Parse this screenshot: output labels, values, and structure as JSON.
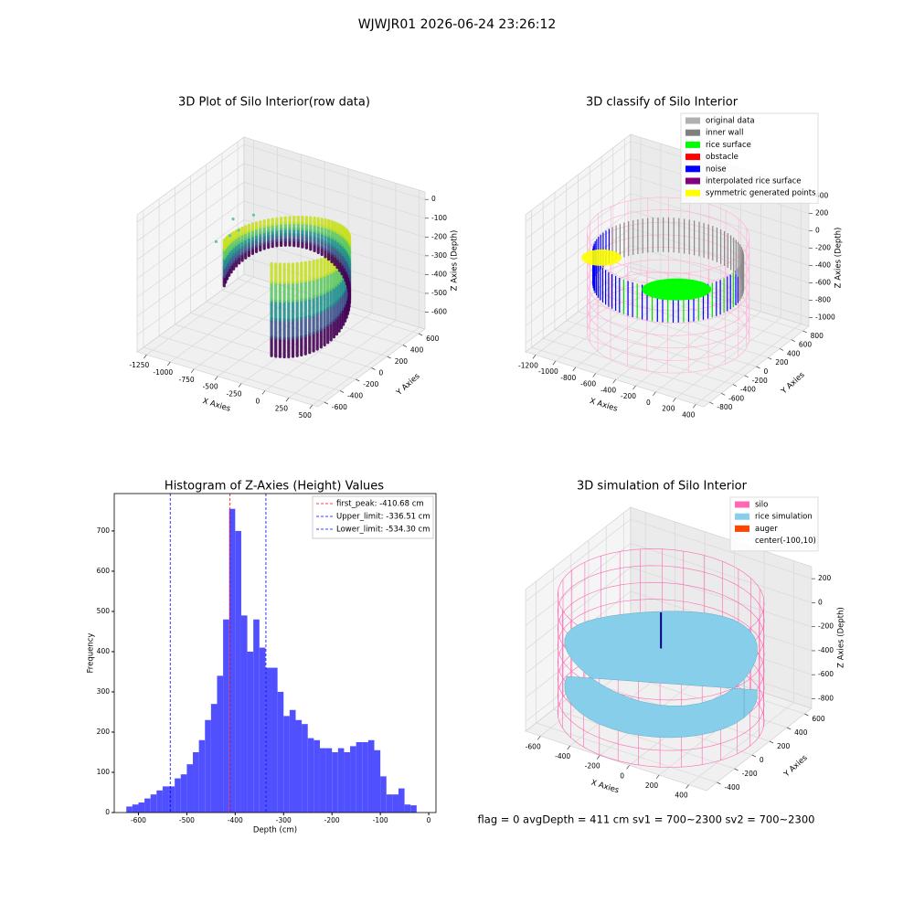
{
  "title": "WJWJR01 2026-06-24 23:26:12",
  "footer": "flag = 0     avgDepth = 411 cm  sv1 = 700~2300  sv2 = 700~2300",
  "chart_data": [
    {
      "type": "scatter3d",
      "title": "3D Plot of Silo Interior(row data)",
      "xlabel": "X Axies",
      "ylabel": "Y Axies",
      "zlabel": "Z Axies (Depth)",
      "xlim": [
        -1350,
        560
      ],
      "xticks": [
        -1250,
        -1000,
        -750,
        -500,
        -250,
        0,
        250,
        500
      ],
      "ylim": [
        -680,
        680
      ],
      "yticks": [
        -600,
        -400,
        -200,
        0,
        200,
        400,
        600
      ],
      "zlim": [
        -690,
        40
      ],
      "zticks": [
        -600,
        -500,
        -400,
        -300,
        -200,
        -100,
        0
      ],
      "legend": []
    },
    {
      "type": "scatter3d",
      "title": "3D classify of Silo Interior",
      "xlabel": "X Axies",
      "ylabel": "Y Axies",
      "zlabel": "Z Axies (Depth)",
      "xlim": [
        -1300,
        480
      ],
      "xticks": [
        -1200,
        -1000,
        -800,
        -600,
        -400,
        -200,
        0,
        200,
        400
      ],
      "ylim": [
        -900,
        900
      ],
      "yticks": [
        -800,
        -600,
        -400,
        -200,
        0,
        200,
        400,
        600,
        800
      ],
      "zlim": [
        -1100,
        480
      ],
      "zticks": [
        -1000,
        -800,
        -600,
        -400,
        -200,
        0,
        200,
        400
      ],
      "legend": [
        {
          "name": "original data",
          "color": "#b0b0b0"
        },
        {
          "name": "inner wall",
          "color": "#808080"
        },
        {
          "name": "rice surface",
          "color": "#00ff00"
        },
        {
          "name": "obstacle",
          "color": "#ff0000"
        },
        {
          "name": "noise",
          "color": "#0000ff"
        },
        {
          "name": "interpolated rice surface",
          "color": "#800080"
        },
        {
          "name": "symmetric generated points",
          "color": "#ffff00"
        }
      ]
    },
    {
      "type": "histogram",
      "title": "Histogram of Z-Axies (Height) Values",
      "xlabel": "Depth (cm)",
      "ylabel": "Frequency",
      "color": "#5050ff",
      "bins": [
        -625,
        -612.5,
        -600,
        -587.5,
        -575,
        -562.5,
        -550,
        -537.5,
        -525,
        -512.5,
        -500,
        -487.5,
        -475,
        -462.5,
        -450,
        -437.5,
        -425,
        -412.5,
        -400,
        -387.5,
        -375,
        -362.5,
        -350,
        -337.5,
        -325,
        -312.5,
        -300,
        -287.5,
        -275,
        -262.5,
        -250,
        -237.5,
        -225,
        -212.5,
        -200,
        -187.5,
        -175,
        -162.5,
        -150,
        -137.5,
        -125,
        -112.5,
        -100,
        -87.5,
        -75,
        -62.5,
        -50,
        -37.5,
        -25
      ],
      "counts": [
        15,
        20,
        25,
        35,
        45,
        55,
        65,
        65,
        85,
        95,
        120,
        150,
        180,
        230,
        270,
        340,
        480,
        755,
        700,
        490,
        400,
        480,
        410,
        360,
        360,
        300,
        240,
        255,
        230,
        220,
        185,
        180,
        160,
        160,
        150,
        160,
        150,
        165,
        175,
        175,
        180,
        155,
        90,
        45,
        45,
        60,
        20,
        18
      ],
      "xlim": [
        -650,
        15
      ],
      "xticks": [
        -600,
        -500,
        -400,
        -300,
        -200,
        -100,
        0
      ],
      "ylim": [
        0,
        793
      ],
      "yticks": [
        0,
        100,
        200,
        300,
        400,
        500,
        600,
        700
      ],
      "lines": [
        {
          "label": "first_peak: -410.68 cm",
          "value": -410.68,
          "color": "#ff0000"
        },
        {
          "label": "Upper_limit: -336.51 cm",
          "value": -336.51,
          "color": "#0000ff"
        },
        {
          "label": "Lower_limit: -534.30 cm",
          "value": -534.3,
          "color": "#0000ff"
        }
      ]
    },
    {
      "type": "scatter3d",
      "title": "3D simulation of Silo Interior",
      "xlabel": "X Axies",
      "ylabel": "Y Axies",
      "zlabel": "Z Axies (Depth)",
      "xlim": [
        -700,
        520
      ],
      "xticks": [
        -600,
        -400,
        -200,
        0,
        200,
        400
      ],
      "ylim": [
        -520,
        680
      ],
      "yticks": [
        -400,
        -200,
        0,
        200,
        400,
        600
      ],
      "zlim": [
        -880,
        300
      ],
      "zticks": [
        -800,
        -600,
        -400,
        -200,
        0,
        200
      ],
      "legend": [
        {
          "name": "silo",
          "color": "#ff69b4"
        },
        {
          "name": "rice simulation",
          "color": "#87ceeb"
        },
        {
          "name": "auger",
          "color": "#ff4500"
        },
        {
          "name": "center(-100,10)"
        }
      ]
    }
  ]
}
